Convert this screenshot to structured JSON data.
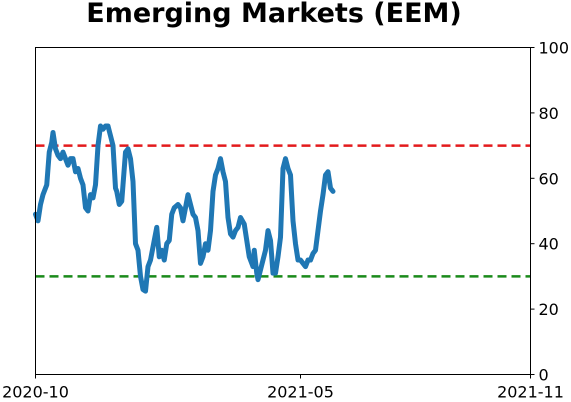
{
  "chart_data": {
    "type": "line",
    "title": "Emerging Markets (EEM)",
    "xlabel": "",
    "ylabel": "",
    "x_start": "2020-10-01",
    "x_end": "2021-11-01",
    "y_range": [
      0,
      100
    ],
    "y_axis_side": "right",
    "y_ticks": [
      "0",
      "20",
      "40",
      "60",
      "80",
      "100"
    ],
    "y_tick_values": [
      0,
      20,
      40,
      60,
      80,
      100
    ],
    "x_ticks": [
      "2020-10",
      "2021-05",
      "2021-11"
    ],
    "x_tick_dates": [
      "2020-10-01",
      "2021-05-01",
      "2021-11-01"
    ],
    "grid": false,
    "reference_lines": [
      {
        "value": 70,
        "color": "#e31a1c",
        "style": "dashed"
      },
      {
        "value": 30,
        "color": "#1a8a1a",
        "style": "dashed"
      }
    ],
    "series": [
      {
        "color": "#1f77b4",
        "points": [
          [
            "2020-10-01",
            49
          ],
          [
            "2020-10-03",
            47
          ],
          [
            "2020-10-05",
            52
          ],
          [
            "2020-10-07",
            55
          ],
          [
            "2020-10-10",
            58
          ],
          [
            "2020-10-12",
            68
          ],
          [
            "2020-10-14",
            71
          ],
          [
            "2020-10-15",
            74
          ],
          [
            "2020-10-17",
            69
          ],
          [
            "2020-10-19",
            67
          ],
          [
            "2020-10-21",
            66
          ],
          [
            "2020-10-23",
            68
          ],
          [
            "2020-10-25",
            66
          ],
          [
            "2020-10-27",
            64
          ],
          [
            "2020-10-29",
            66
          ],
          [
            "2020-10-31",
            66
          ],
          [
            "2020-11-02",
            62
          ],
          [
            "2020-11-04",
            63
          ],
          [
            "2020-11-06",
            60
          ],
          [
            "2020-11-08",
            58
          ],
          [
            "2020-11-10",
            51
          ],
          [
            "2020-11-12",
            50
          ],
          [
            "2020-11-14",
            55
          ],
          [
            "2020-11-16",
            54
          ],
          [
            "2020-11-18",
            58
          ],
          [
            "2020-11-20",
            70
          ],
          [
            "2020-11-22",
            76
          ],
          [
            "2020-11-24",
            75
          ],
          [
            "2020-11-26",
            76
          ],
          [
            "2020-11-28",
            76
          ],
          [
            "2020-11-30",
            73
          ],
          [
            "2020-12-02",
            70
          ],
          [
            "2020-12-04",
            57
          ],
          [
            "2020-12-05",
            56
          ],
          [
            "2020-12-07",
            52
          ],
          [
            "2020-12-09",
            53
          ],
          [
            "2020-12-12",
            68
          ],
          [
            "2020-12-14",
            69
          ],
          [
            "2020-12-16",
            66
          ],
          [
            "2020-12-18",
            59
          ],
          [
            "2020-12-20",
            40
          ],
          [
            "2020-12-22",
            38
          ],
          [
            "2020-12-24",
            30
          ],
          [
            "2020-12-26",
            26
          ],
          [
            "2020-12-28",
            25.5
          ],
          [
            "2020-12-30",
            33
          ],
          [
            "2021-01-01",
            35
          ],
          [
            "2021-01-03",
            39
          ],
          [
            "2021-01-06",
            45
          ],
          [
            "2021-01-08",
            36
          ],
          [
            "2021-01-10",
            38
          ],
          [
            "2021-01-12",
            35
          ],
          [
            "2021-01-14",
            40
          ],
          [
            "2021-01-16",
            41
          ],
          [
            "2021-01-18",
            49
          ],
          [
            "2021-01-20",
            51
          ],
          [
            "2021-01-23",
            52
          ],
          [
            "2021-01-25",
            51
          ],
          [
            "2021-01-27",
            47
          ],
          [
            "2021-01-29",
            51
          ],
          [
            "2021-01-31",
            55
          ],
          [
            "2021-02-02",
            52
          ],
          [
            "2021-02-04",
            49
          ],
          [
            "2021-02-06",
            48
          ],
          [
            "2021-02-08",
            44
          ],
          [
            "2021-02-10",
            34
          ],
          [
            "2021-02-12",
            36
          ],
          [
            "2021-02-14",
            40
          ],
          [
            "2021-02-16",
            38
          ],
          [
            "2021-02-18",
            44
          ],
          [
            "2021-02-20",
            56
          ],
          [
            "2021-02-22",
            61
          ],
          [
            "2021-02-24",
            63
          ],
          [
            "2021-02-26",
            66
          ],
          [
            "2021-02-28",
            62
          ],
          [
            "2021-03-02",
            59
          ],
          [
            "2021-03-04",
            48
          ],
          [
            "2021-03-06",
            43
          ],
          [
            "2021-03-08",
            42
          ],
          [
            "2021-03-10",
            44
          ],
          [
            "2021-03-12",
            45
          ],
          [
            "2021-03-14",
            48
          ],
          [
            "2021-03-17",
            46
          ],
          [
            "2021-03-19",
            41
          ],
          [
            "2021-03-21",
            36
          ],
          [
            "2021-03-24",
            33
          ],
          [
            "2021-03-25",
            38
          ],
          [
            "2021-03-27",
            31
          ],
          [
            "2021-03-28",
            29
          ],
          [
            "2021-03-30",
            32
          ],
          [
            "2021-04-01",
            35
          ],
          [
            "2021-04-03",
            38
          ],
          [
            "2021-04-05",
            44
          ],
          [
            "2021-04-07",
            41
          ],
          [
            "2021-04-09",
            31
          ],
          [
            "2021-04-11",
            31
          ],
          [
            "2021-04-13",
            36
          ],
          [
            "2021-04-15",
            42
          ],
          [
            "2021-04-17",
            63
          ],
          [
            "2021-04-19",
            66
          ],
          [
            "2021-04-21",
            63
          ],
          [
            "2021-04-23",
            61
          ],
          [
            "2021-04-25",
            47
          ],
          [
            "2021-04-27",
            40
          ],
          [
            "2021-04-29",
            35
          ],
          [
            "2021-05-01",
            35
          ],
          [
            "2021-05-03",
            34
          ],
          [
            "2021-05-05",
            33
          ],
          [
            "2021-05-07",
            35
          ],
          [
            "2021-05-09",
            35
          ],
          [
            "2021-05-11",
            37
          ],
          [
            "2021-05-13",
            38
          ],
          [
            "2021-05-15",
            44
          ],
          [
            "2021-05-17",
            50
          ],
          [
            "2021-05-19",
            55
          ],
          [
            "2021-05-21",
            61
          ],
          [
            "2021-05-23",
            62
          ],
          [
            "2021-05-25",
            57
          ],
          [
            "2021-05-27",
            56
          ]
        ]
      }
    ]
  }
}
